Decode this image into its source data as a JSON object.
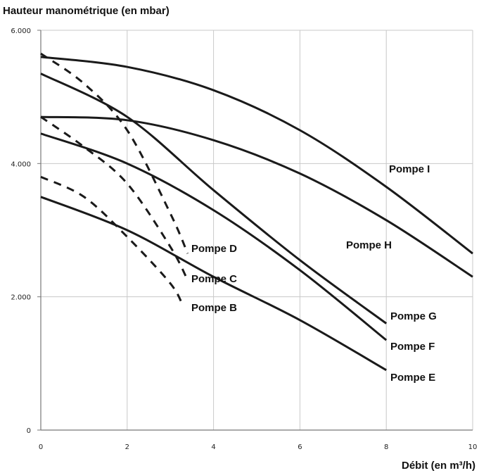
{
  "chart_data": {
    "type": "line",
    "ylabel": "Hauteur manométrique (en mbar)",
    "xlabel": "Débit (en m³/h)",
    "xlim": [
      0,
      10
    ],
    "ylim": [
      0,
      6000
    ],
    "x_ticks": [
      "0",
      "2",
      "4",
      "6",
      "8",
      "10"
    ],
    "y_ticks": [
      "0",
      "2.000",
      "4.000",
      "6.000"
    ],
    "grid": true,
    "series": [
      {
        "name": "Pompe B",
        "style": "dashed",
        "x": [
          0,
          1,
          2,
          3,
          3.3
        ],
        "y": [
          3800,
          3500,
          2900,
          2200,
          1850
        ]
      },
      {
        "name": "Pompe C",
        "style": "dashed",
        "x": [
          0,
          1,
          2,
          3,
          3.4
        ],
        "y": [
          4700,
          4250,
          3700,
          2750,
          2250
        ]
      },
      {
        "name": "Pompe D",
        "style": "dashed",
        "x": [
          0,
          1,
          2,
          3,
          3.4
        ],
        "y": [
          5650,
          5200,
          4500,
          3250,
          2650
        ]
      },
      {
        "name": "Pompe E",
        "style": "solid",
        "x": [
          0,
          2,
          4,
          6,
          8
        ],
        "y": [
          3500,
          3000,
          2300,
          1650,
          900
        ]
      },
      {
        "name": "Pompe F",
        "style": "solid",
        "x": [
          0,
          2,
          4,
          6,
          8
        ],
        "y": [
          4450,
          4000,
          3300,
          2400,
          1350
        ]
      },
      {
        "name": "Pompe G",
        "style": "solid",
        "x": [
          0,
          2,
          4,
          6,
          8
        ],
        "y": [
          5350,
          4700,
          3600,
          2550,
          1600
        ]
      },
      {
        "name": "Pompe H",
        "style": "solid",
        "x": [
          0,
          2,
          4,
          6,
          8,
          10
        ],
        "y": [
          4700,
          4650,
          4350,
          3850,
          3150,
          2300
        ]
      },
      {
        "name": "Pompe I",
        "style": "solid",
        "x": [
          0,
          2,
          4,
          6,
          8,
          10
        ],
        "y": [
          5600,
          5450,
          5100,
          4500,
          3650,
          2650
        ]
      }
    ]
  }
}
